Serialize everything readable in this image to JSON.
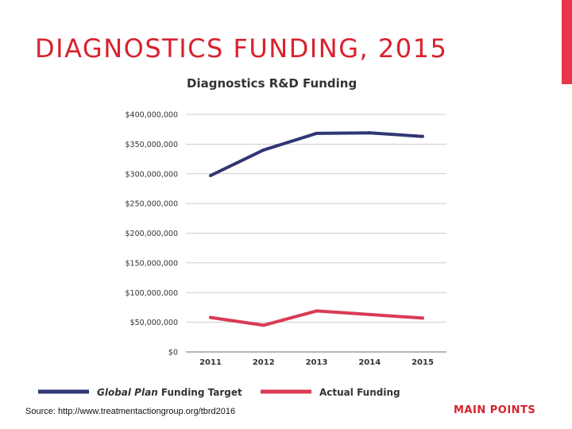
{
  "slide": {
    "title": "DIAGNOSTICS FUNDING, 2015",
    "source": "Source: http://www.treatmentactiongroup.org/tbrd2016",
    "main_points": "MAIN POINTS",
    "accent_color": "#e8364a"
  },
  "chart_data": {
    "type": "line",
    "title": "Diagnostics R&D Funding",
    "x": [
      "2011",
      "2012",
      "2013",
      "2014",
      "2015"
    ],
    "ylim": [
      0,
      400000000
    ],
    "y_ticks": [
      0,
      50000000,
      100000000,
      150000000,
      200000000,
      250000000,
      300000000,
      350000000,
      400000000
    ],
    "y_tick_labels": [
      "$0",
      "$50,000,000",
      "$100,000,000",
      "$150,000,000",
      "$200,000,000",
      "$250,000,000",
      "$300,000,000",
      "$350,000,000",
      "$400,000,000"
    ],
    "grid": true,
    "legend_position": "bottom",
    "series": [
      {
        "name_prefix": "Global Plan",
        "name_suffix": " Funding Target",
        "color": "#2f3773",
        "values": [
          297000000,
          340000000,
          368000000,
          369000000,
          363000000
        ]
      },
      {
        "name": "Actual Funding",
        "color": "#d93a55",
        "values": [
          58000000,
          45000000,
          69000000,
          63000000,
          57000000
        ]
      }
    ]
  }
}
